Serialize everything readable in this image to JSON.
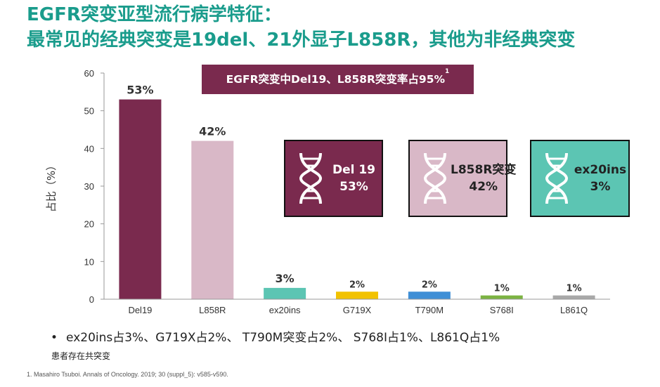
{
  "title_line1": "EGFR突变亚型流行病学特征：",
  "title_line2": "最常见的经典突变是19del、21外显子L858R，其他为非经典突变",
  "callout": {
    "text": "EGFR突变中Del19、L858R突变率占95%",
    "superscript": "1"
  },
  "cards": [
    {
      "name": "Del 19",
      "value": "53%",
      "bg": "#7a2a4e",
      "text_color": "#ffffff",
      "icon": "dna-icon"
    },
    {
      "name": "L858R突变",
      "value": "42%",
      "bg": "#d9b8c7",
      "text_color": "#222222",
      "icon": "dna-icon"
    },
    {
      "name": "ex20ins",
      "value": "3%",
      "bg": "#5cc5b3",
      "text_color": "#222222",
      "icon": "dna-icon"
    }
  ],
  "bullet_text": "ex20ins占3%、G719X占2%、 T790M突变占2%、 S768I占1%、L861Q占1%",
  "note": "患者存在共突变",
  "reference": "1. Masahiro Tsuboi. Annals of Oncology. 2019; 30 (suppl_5): v585-v590.",
  "chart_data": {
    "type": "bar",
    "title": "",
    "xlabel": "",
    "ylabel": "占比（%）",
    "ylim": [
      0,
      60
    ],
    "yticks": [
      0,
      10,
      20,
      30,
      40,
      50,
      60
    ],
    "grid": false,
    "categories": [
      "Del19",
      "L858R",
      "ex20ins",
      "G719X",
      "T790M",
      "S768I",
      "L861Q"
    ],
    "values": [
      53,
      42,
      3,
      2,
      2,
      1,
      1
    ],
    "data_labels": [
      "53%",
      "42%",
      "3%",
      "2%",
      "2%",
      "1%",
      "1%"
    ],
    "colors": [
      "#7a2a4e",
      "#d9b8c7",
      "#5cc5b3",
      "#f2c200",
      "#3f8fd6",
      "#7cb342",
      "#a9a9a9"
    ]
  }
}
